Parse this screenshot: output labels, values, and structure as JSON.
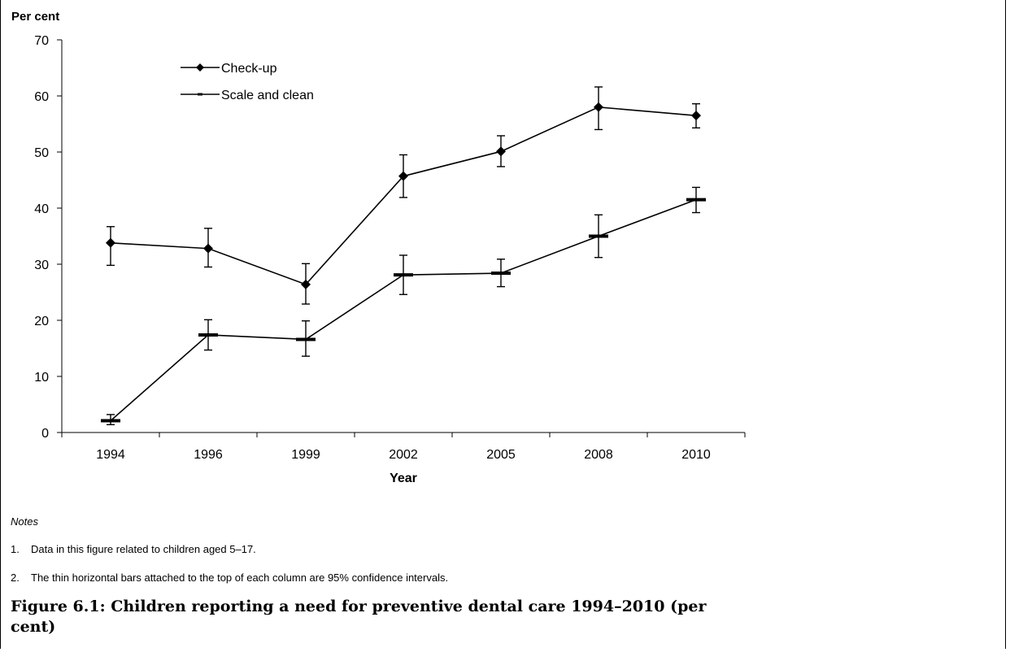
{
  "chart_data": {
    "type": "line",
    "ylabel": "Per cent",
    "xlabel": "Year",
    "categories": [
      "1994",
      "1996",
      "1999",
      "2002",
      "2005",
      "2008",
      "2010"
    ],
    "ylim": [
      0,
      70
    ],
    "yticks": [
      0,
      10,
      20,
      30,
      40,
      50,
      60,
      70
    ],
    "grid": false,
    "legend_position": "top-left",
    "series": [
      {
        "name": "Check-up",
        "marker": "diamond",
        "values": [
          33.8,
          32.8,
          26.4,
          45.7,
          50.1,
          58.0,
          56.5
        ],
        "ci_low": [
          29.8,
          29.5,
          22.9,
          41.9,
          47.4,
          54.0,
          54.3
        ],
        "ci_high": [
          36.7,
          36.4,
          30.1,
          49.5,
          52.9,
          61.6,
          58.6
        ]
      },
      {
        "name": "Scale and clean",
        "marker": "dash",
        "values": [
          2.1,
          17.4,
          16.6,
          28.1,
          28.4,
          35.0,
          41.5
        ],
        "ci_low": [
          1.4,
          14.7,
          13.6,
          24.6,
          26.0,
          31.2,
          39.2
        ],
        "ci_high": [
          3.2,
          20.1,
          19.9,
          31.6,
          30.9,
          38.8,
          43.7
        ]
      }
    ],
    "color": "#000000"
  },
  "notes": {
    "heading": "Notes",
    "items": [
      {
        "num": "1.",
        "text": "Data in this figure related to children aged 5–17."
      },
      {
        "num": "2.",
        "text": "The thin horizontal bars attached to the top of each column are 95% confidence intervals."
      }
    ]
  },
  "caption": "Figure 6.1: Children reporting a need for preventive dental care 1994–2010 (per cent)"
}
